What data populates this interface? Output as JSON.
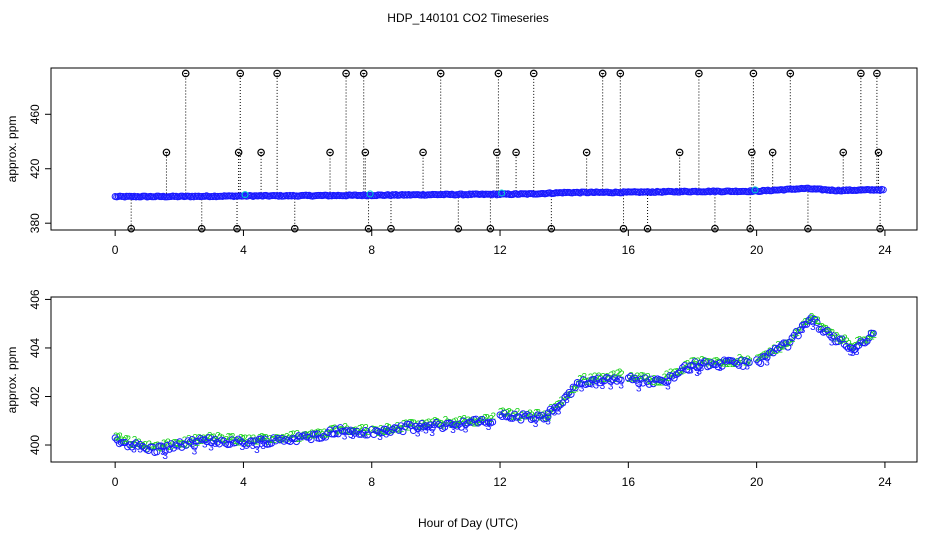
{
  "figure": {
    "title": "HDP_140101  CO2 Timeseries",
    "xlabel": "Hour of Day (UTC)"
  },
  "colors": {
    "axis": "#000000",
    "point_black": "#000000",
    "series_blue": "#1a1aff",
    "series_green": "#19d219",
    "series_cyan": "#00cccc",
    "drop_line": "#000000"
  },
  "chart_data": [
    {
      "type": "scatter",
      "panel": "top",
      "ylabel": "approx. ppm",
      "xlim": [
        -2,
        25
      ],
      "ylim": [
        375,
        494
      ],
      "xticks": [
        0,
        4,
        8,
        12,
        16,
        20,
        24
      ],
      "yticks": [
        380,
        420,
        460
      ],
      "series": [
        {
          "marker": "circle",
          "color": "blue",
          "x_range": [
            0,
            24
          ],
          "baseline_points": [
            [
              0,
              399.5
            ],
            [
              2,
              399.6
            ],
            [
              4,
              400.0
            ],
            [
              6,
              400.2
            ],
            [
              8,
              400.5
            ],
            [
              10,
              401.0
            ],
            [
              12,
              401.2
            ],
            [
              13,
              401.5
            ],
            [
              14,
              402.5
            ],
            [
              16,
              402.7
            ],
            [
              18,
              403.3
            ],
            [
              20,
              403.5
            ],
            [
              21.5,
              405.5
            ],
            [
              22.5,
              404.0
            ],
            [
              23.7,
              404.5
            ]
          ]
        },
        {
          "marker": "circle",
          "color": "black",
          "outliers": [
            [
              0.5,
              376
            ],
            [
              1.6,
              432
            ],
            [
              2.2,
              490
            ],
            [
              2.7,
              376
            ],
            [
              3.8,
              376
            ],
            [
              3.85,
              432
            ],
            [
              3.9,
              490
            ],
            [
              4.55,
              432
            ],
            [
              5.05,
              490
            ],
            [
              5.6,
              376
            ],
            [
              6.7,
              432
            ],
            [
              7.2,
              490
            ],
            [
              7.75,
              490
            ],
            [
              7.8,
              432
            ],
            [
              7.9,
              376
            ],
            [
              8.6,
              376
            ],
            [
              9.6,
              432
            ],
            [
              10.15,
              490
            ],
            [
              10.7,
              376
            ],
            [
              11.7,
              376
            ],
            [
              11.9,
              432
            ],
            [
              11.95,
              490
            ],
            [
              12.5,
              432
            ],
            [
              13.05,
              490
            ],
            [
              13.6,
              376
            ],
            [
              14.7,
              432
            ],
            [
              15.2,
              490
            ],
            [
              15.75,
              490
            ],
            [
              15.85,
              376
            ],
            [
              16.6,
              376
            ],
            [
              17.6,
              432
            ],
            [
              18.2,
              490
            ],
            [
              18.7,
              376
            ],
            [
              19.8,
              376
            ],
            [
              19.85,
              432
            ],
            [
              19.9,
              490
            ],
            [
              20.5,
              432
            ],
            [
              21.05,
              490
            ],
            [
              21.6,
              376
            ],
            [
              22.7,
              432
            ],
            [
              23.25,
              490
            ],
            [
              23.75,
              490
            ],
            [
              23.8,
              432
            ],
            [
              23.85,
              376
            ]
          ]
        }
      ]
    },
    {
      "type": "scatter",
      "panel": "bottom",
      "ylabel": "approx. ppm",
      "xlim": [
        -2,
        25
      ],
      "ylim": [
        399.3,
        406.1
      ],
      "xticks": [
        0,
        4,
        8,
        12,
        16,
        20,
        24
      ],
      "yticks": [
        400,
        402,
        404,
        406
      ],
      "series": [
        {
          "marker": "3",
          "color": "blue",
          "x_range": [
            0,
            23.7
          ],
          "segments": [
            {
              "x": [
                0,
                7.9
              ],
              "points": [
                [
                  0,
                  400.2
                ],
                [
                  1.2,
                  399.8
                ],
                [
                  2,
                  400.0
                ],
                [
                  3,
                  400.2
                ],
                [
                  4,
                  400.1
                ],
                [
                  5,
                  400.2
                ],
                [
                  6,
                  400.3
                ],
                [
                  7,
                  400.6
                ],
                [
                  7.9,
                  400.5
                ]
              ]
            },
            {
              "x": [
                8,
                11.8
              ],
              "points": [
                [
                  8,
                  400.5
                ],
                [
                  9,
                  400.7
                ],
                [
                  10,
                  400.8
                ],
                [
                  11,
                  400.9
                ],
                [
                  11.8,
                  401.0
                ]
              ]
            },
            {
              "x": [
                12,
                13.5
              ],
              "points": [
                [
                  12,
                  401.2
                ],
                [
                  13.5,
                  401.1
                ]
              ]
            },
            {
              "x": [
                13.5,
                15.8
              ],
              "points": [
                [
                  13.5,
                  401.3
                ],
                [
                  14,
                  401.8
                ],
                [
                  14.5,
                  402.6
                ],
                [
                  15.8,
                  402.8
                ]
              ]
            },
            {
              "x": [
                16,
                19.8
              ],
              "points": [
                [
                  16,
                  402.7
                ],
                [
                  17,
                  402.6
                ],
                [
                  18,
                  403.3
                ],
                [
                  19.8,
                  403.4
                ]
              ]
            },
            {
              "x": [
                20,
                23.7
              ],
              "points": [
                [
                  20,
                  403.4
                ],
                [
                  21,
                  404.2
                ],
                [
                  21.7,
                  405.2
                ],
                [
                  22.3,
                  404.5
                ],
                [
                  23,
                  404.0
                ],
                [
                  23.7,
                  404.6
                ]
              ]
            }
          ]
        },
        {
          "marker": "2",
          "color": "green",
          "x_range": [
            0,
            23.7
          ],
          "note_offset": "slightly above the blue series"
        }
      ]
    }
  ]
}
